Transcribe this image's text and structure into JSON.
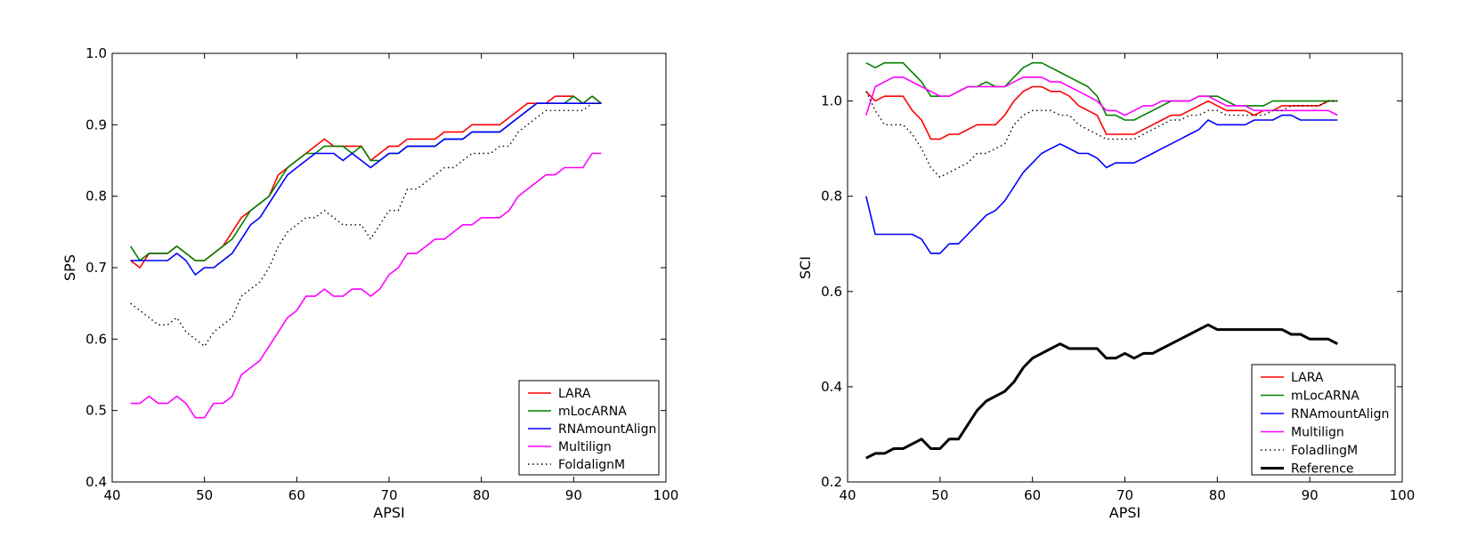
{
  "chart_data": [
    {
      "type": "line",
      "xlabel": "APSI",
      "ylabel": "SPS",
      "xlim": [
        40,
        100
      ],
      "ylim": [
        0.4,
        1.0
      ],
      "xticks": [
        "40",
        "50",
        "60",
        "70",
        "80",
        "90",
        "100"
      ],
      "yticks": [
        "0.4",
        "0.5",
        "0.6",
        "0.7",
        "0.8",
        "0.9",
        "1.0"
      ],
      "legend_position": "lower-right",
      "x": [
        42,
        43,
        44,
        45,
        46,
        47,
        48,
        49,
        50,
        51,
        52,
        53,
        54,
        55,
        56,
        57,
        58,
        59,
        60,
        61,
        62,
        63,
        64,
        65,
        66,
        67,
        68,
        69,
        70,
        71,
        72,
        73,
        74,
        75,
        76,
        77,
        78,
        79,
        80,
        81,
        82,
        83,
        84,
        85,
        86,
        87,
        88,
        89,
        90,
        91,
        92,
        93
      ],
      "series": [
        {
          "name": "LARA",
          "color": "#ff0000",
          "style": "solid",
          "width": 1.6,
          "values": [
            0.71,
            0.7,
            0.72,
            0.72,
            0.72,
            0.73,
            0.72,
            0.71,
            0.71,
            0.72,
            0.73,
            0.75,
            0.77,
            0.78,
            0.79,
            0.8,
            0.83,
            0.84,
            0.85,
            0.86,
            0.87,
            0.88,
            0.87,
            0.87,
            0.87,
            0.87,
            0.85,
            0.86,
            0.87,
            0.87,
            0.88,
            0.88,
            0.88,
            0.88,
            0.89,
            0.89,
            0.89,
            0.9,
            0.9,
            0.9,
            0.9,
            0.91,
            0.92,
            0.93,
            0.93,
            0.93,
            0.94,
            0.94,
            0.94,
            0.93,
            0.94,
            0.93
          ]
        },
        {
          "name": "mLocARNA",
          "color": "#008000",
          "style": "solid",
          "width": 1.6,
          "values": [
            0.73,
            0.71,
            0.72,
            0.72,
            0.72,
            0.73,
            0.72,
            0.71,
            0.71,
            0.72,
            0.73,
            0.74,
            0.76,
            0.78,
            0.79,
            0.8,
            0.82,
            0.84,
            0.85,
            0.86,
            0.86,
            0.87,
            0.87,
            0.87,
            0.86,
            0.87,
            0.85,
            0.85,
            0.86,
            0.86,
            0.87,
            0.87,
            0.87,
            0.87,
            0.88,
            0.88,
            0.88,
            0.89,
            0.89,
            0.89,
            0.89,
            0.9,
            0.91,
            0.92,
            0.93,
            0.93,
            0.93,
            0.93,
            0.94,
            0.93,
            0.94,
            0.93
          ]
        },
        {
          "name": "RNAmountAlign",
          "color": "#0000ff",
          "style": "solid",
          "width": 1.6,
          "values": [
            0.71,
            0.71,
            0.71,
            0.71,
            0.71,
            0.72,
            0.71,
            0.69,
            0.7,
            0.7,
            0.71,
            0.72,
            0.74,
            0.76,
            0.77,
            0.79,
            0.81,
            0.83,
            0.84,
            0.85,
            0.86,
            0.86,
            0.86,
            0.85,
            0.86,
            0.85,
            0.84,
            0.85,
            0.86,
            0.86,
            0.87,
            0.87,
            0.87,
            0.87,
            0.88,
            0.88,
            0.88,
            0.89,
            0.89,
            0.89,
            0.89,
            0.9,
            0.91,
            0.92,
            0.93,
            0.93,
            0.93,
            0.93,
            0.93,
            0.93,
            0.93,
            0.93
          ]
        },
        {
          "name": "Multilign",
          "color": "#ff00ff",
          "style": "solid",
          "width": 1.6,
          "values": [
            0.51,
            0.51,
            0.52,
            0.51,
            0.51,
            0.52,
            0.51,
            0.49,
            0.49,
            0.51,
            0.51,
            0.52,
            0.55,
            0.56,
            0.57,
            0.59,
            0.61,
            0.63,
            0.64,
            0.66,
            0.66,
            0.67,
            0.66,
            0.66,
            0.67,
            0.67,
            0.66,
            0.67,
            0.69,
            0.7,
            0.72,
            0.72,
            0.73,
            0.74,
            0.74,
            0.75,
            0.76,
            0.76,
            0.77,
            0.77,
            0.77,
            0.78,
            0.8,
            0.81,
            0.82,
            0.83,
            0.83,
            0.84,
            0.84,
            0.84,
            0.86,
            0.86
          ]
        },
        {
          "name": "FoldalignM",
          "color": "#000000",
          "style": "dotted",
          "width": 1.4,
          "values": [
            0.65,
            0.64,
            0.63,
            0.62,
            0.62,
            0.63,
            0.61,
            0.6,
            0.59,
            0.61,
            0.62,
            0.63,
            0.66,
            0.67,
            0.68,
            0.7,
            0.73,
            0.75,
            0.76,
            0.77,
            0.77,
            0.78,
            0.77,
            0.76,
            0.76,
            0.76,
            0.74,
            0.76,
            0.78,
            0.78,
            0.81,
            0.81,
            0.82,
            0.83,
            0.84,
            0.84,
            0.85,
            0.86,
            0.86,
            0.86,
            0.87,
            0.87,
            0.89,
            0.9,
            0.91,
            0.92,
            0.92,
            0.92,
            0.92,
            0.92,
            0.93,
            0.93
          ]
        }
      ]
    },
    {
      "type": "line",
      "xlabel": "APSI",
      "ylabel": "SCI",
      "xlim": [
        40,
        100
      ],
      "ylim": [
        0.2,
        1.1
      ],
      "xticks": [
        "40",
        "50",
        "60",
        "70",
        "80",
        "90",
        "100"
      ],
      "yticks": [
        "0.2",
        "0.4",
        "0.6",
        "0.8",
        "1.0"
      ],
      "legend_position": "lower-right",
      "x": [
        42,
        43,
        44,
        45,
        46,
        47,
        48,
        49,
        50,
        51,
        52,
        53,
        54,
        55,
        56,
        57,
        58,
        59,
        60,
        61,
        62,
        63,
        64,
        65,
        66,
        67,
        68,
        69,
        70,
        71,
        72,
        73,
        74,
        75,
        76,
        77,
        78,
        79,
        80,
        81,
        82,
        83,
        84,
        85,
        86,
        87,
        88,
        89,
        90,
        91,
        92,
        93
      ],
      "series": [
        {
          "name": "LARA",
          "color": "#ff0000",
          "style": "solid",
          "width": 1.6,
          "values": [
            1.02,
            1.0,
            1.01,
            1.01,
            1.01,
            0.98,
            0.96,
            0.92,
            0.92,
            0.93,
            0.93,
            0.94,
            0.95,
            0.95,
            0.95,
            0.97,
            1.0,
            1.02,
            1.03,
            1.03,
            1.02,
            1.02,
            1.01,
            0.99,
            0.98,
            0.97,
            0.93,
            0.93,
            0.93,
            0.93,
            0.94,
            0.95,
            0.96,
            0.97,
            0.97,
            0.98,
            0.99,
            1.0,
            0.99,
            0.98,
            0.98,
            0.98,
            0.97,
            0.98,
            0.98,
            0.99,
            0.99,
            0.99,
            0.99,
            0.99,
            1.0,
            1.0
          ]
        },
        {
          "name": "mLocARNA",
          "color": "#008000",
          "style": "solid",
          "width": 1.6,
          "values": [
            1.08,
            1.07,
            1.08,
            1.08,
            1.08,
            1.06,
            1.04,
            1.01,
            1.01,
            1.01,
            1.02,
            1.03,
            1.03,
            1.04,
            1.03,
            1.03,
            1.05,
            1.07,
            1.08,
            1.08,
            1.07,
            1.06,
            1.05,
            1.04,
            1.03,
            1.01,
            0.97,
            0.97,
            0.96,
            0.96,
            0.97,
            0.98,
            0.99,
            1.0,
            1.0,
            1.0,
            1.01,
            1.01,
            1.01,
            1.0,
            0.99,
            0.99,
            0.99,
            0.99,
            1.0,
            1.0,
            1.0,
            1.0,
            1.0,
            1.0,
            1.0,
            1.0
          ]
        },
        {
          "name": "RNAmountAlign",
          "color": "#0000ff",
          "style": "solid",
          "width": 1.6,
          "values": [
            0.8,
            0.72,
            0.72,
            0.72,
            0.72,
            0.72,
            0.71,
            0.68,
            0.68,
            0.7,
            0.7,
            0.72,
            0.74,
            0.76,
            0.77,
            0.79,
            0.82,
            0.85,
            0.87,
            0.89,
            0.9,
            0.91,
            0.9,
            0.89,
            0.89,
            0.88,
            0.86,
            0.87,
            0.87,
            0.87,
            0.88,
            0.89,
            0.9,
            0.91,
            0.92,
            0.93,
            0.94,
            0.96,
            0.95,
            0.95,
            0.95,
            0.95,
            0.96,
            0.96,
            0.96,
            0.97,
            0.97,
            0.96,
            0.96,
            0.96,
            0.96,
            0.96
          ]
        },
        {
          "name": "Multilign",
          "color": "#ff00ff",
          "style": "solid",
          "width": 1.6,
          "values": [
            0.97,
            1.03,
            1.04,
            1.05,
            1.05,
            1.04,
            1.03,
            1.02,
            1.01,
            1.01,
            1.02,
            1.03,
            1.03,
            1.03,
            1.03,
            1.03,
            1.04,
            1.05,
            1.05,
            1.05,
            1.04,
            1.04,
            1.03,
            1.02,
            1.01,
            1.0,
            0.98,
            0.98,
            0.97,
            0.98,
            0.99,
            0.99,
            1.0,
            1.0,
            1.0,
            1.0,
            1.01,
            1.01,
            1.0,
            0.99,
            0.99,
            0.99,
            0.98,
            0.98,
            0.98,
            0.98,
            0.98,
            0.98,
            0.98,
            0.98,
            0.98,
            0.97
          ]
        },
        {
          "name": "FoladlingM",
          "color": "#000000",
          "style": "dotted",
          "width": 1.4,
          "values": [
            1.02,
            0.98,
            0.95,
            0.95,
            0.95,
            0.93,
            0.9,
            0.86,
            0.84,
            0.85,
            0.86,
            0.87,
            0.89,
            0.89,
            0.9,
            0.91,
            0.95,
            0.97,
            0.98,
            0.98,
            0.98,
            0.97,
            0.97,
            0.95,
            0.94,
            0.93,
            0.92,
            0.92,
            0.92,
            0.92,
            0.93,
            0.94,
            0.95,
            0.96,
            0.96,
            0.97,
            0.97,
            0.98,
            0.98,
            0.97,
            0.97,
            0.97,
            0.97,
            0.97,
            0.98,
            0.98,
            0.99,
            0.99,
            0.99,
            0.99,
            1.0,
            1.0
          ]
        },
        {
          "name": "Reference",
          "color": "#000000",
          "style": "solid",
          "width": 3,
          "values": [
            0.25,
            0.26,
            0.26,
            0.27,
            0.27,
            0.28,
            0.29,
            0.27,
            0.27,
            0.29,
            0.29,
            0.32,
            0.35,
            0.37,
            0.38,
            0.39,
            0.41,
            0.44,
            0.46,
            0.47,
            0.48,
            0.49,
            0.48,
            0.48,
            0.48,
            0.48,
            0.46,
            0.46,
            0.47,
            0.46,
            0.47,
            0.47,
            0.48,
            0.49,
            0.5,
            0.51,
            0.52,
            0.53,
            0.52,
            0.52,
            0.52,
            0.52,
            0.52,
            0.52,
            0.52,
            0.52,
            0.51,
            0.51,
            0.5,
            0.5,
            0.5,
            0.49
          ]
        }
      ]
    }
  ]
}
